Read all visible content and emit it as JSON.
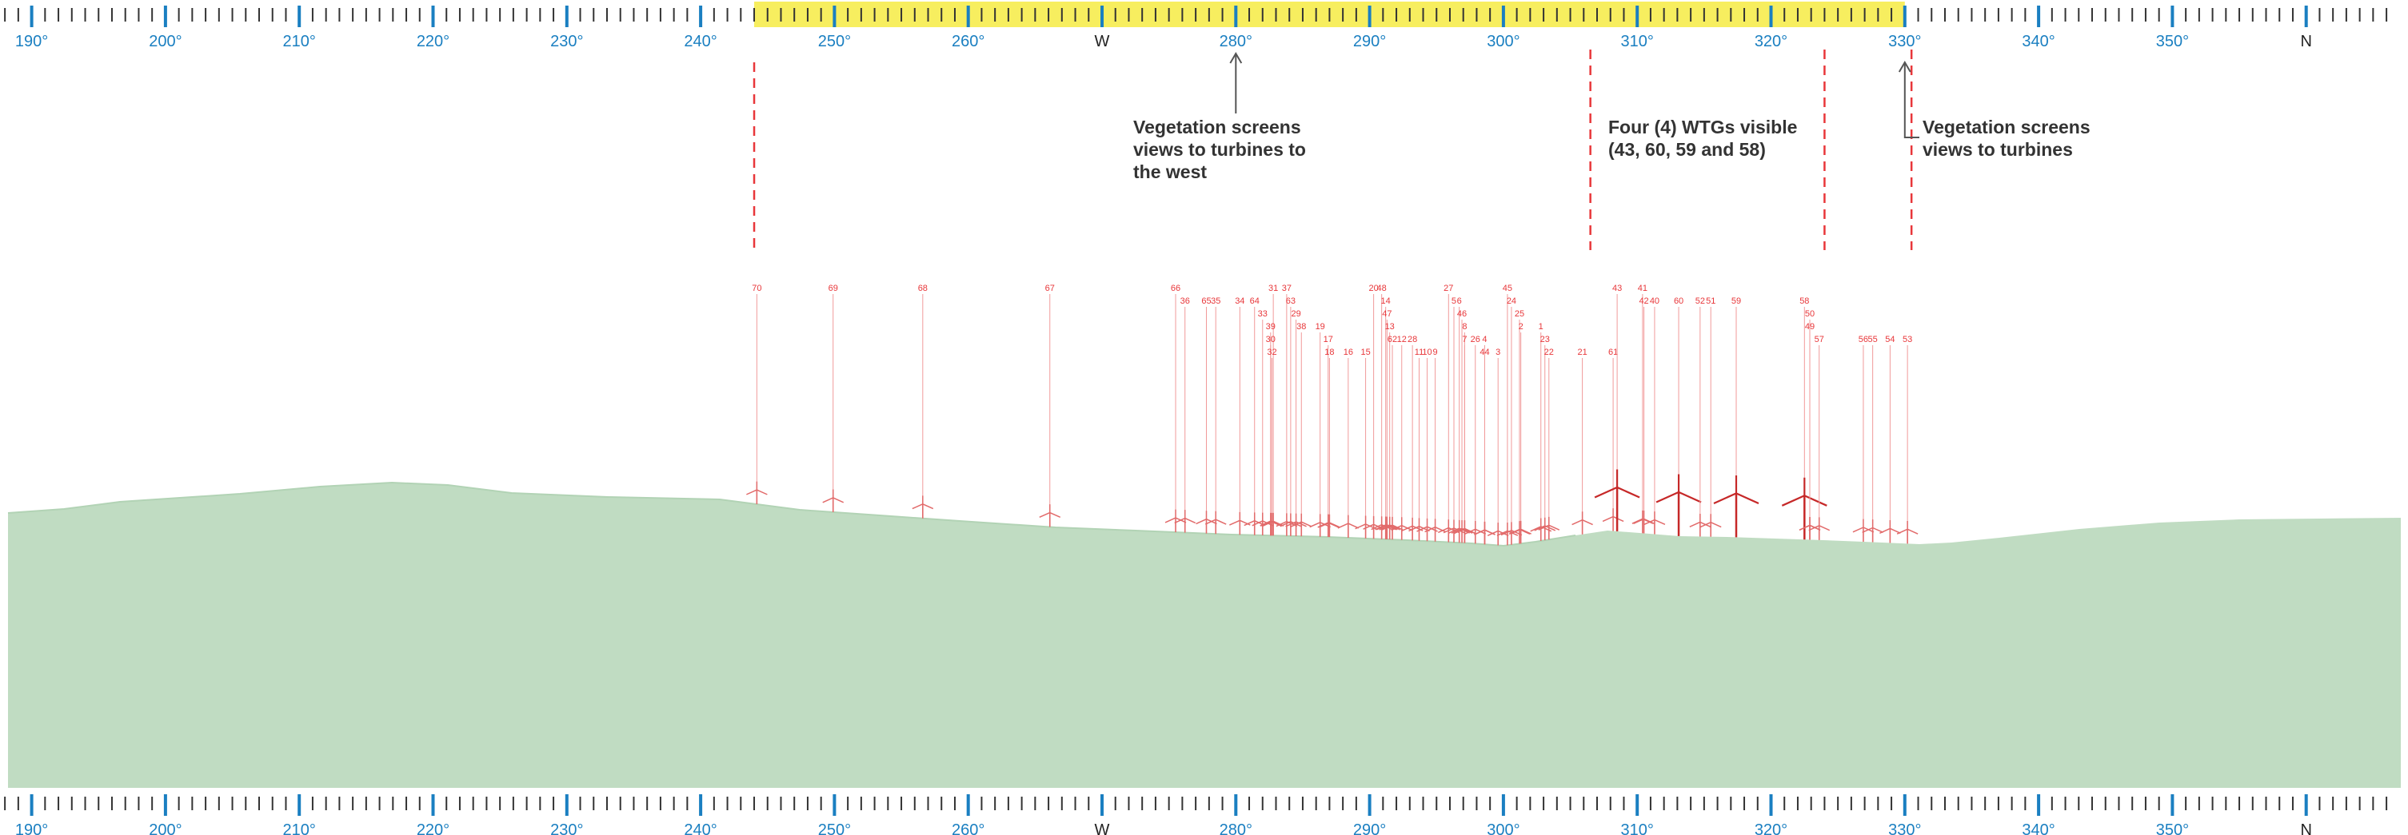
{
  "scale": {
    "start_deg": 187,
    "end_deg": 366,
    "labels": [
      {
        "deg": 190,
        "text": "190°"
      },
      {
        "deg": 200,
        "text": "200°"
      },
      {
        "deg": 210,
        "text": "210°"
      },
      {
        "deg": 220,
        "text": "220°"
      },
      {
        "deg": 230,
        "text": "230°"
      },
      {
        "deg": 240,
        "text": "240°"
      },
      {
        "deg": 250,
        "text": "250°"
      },
      {
        "deg": 260,
        "text": "260°"
      },
      {
        "deg": 270,
        "text": "W"
      },
      {
        "deg": 280,
        "text": "280°"
      },
      {
        "deg": 290,
        "text": "290°"
      },
      {
        "deg": 300,
        "text": "300°"
      },
      {
        "deg": 310,
        "text": "310°"
      },
      {
        "deg": 320,
        "text": "320°"
      },
      {
        "deg": 330,
        "text": "330°"
      },
      {
        "deg": 340,
        "text": "340°"
      },
      {
        "deg": 350,
        "text": "350°"
      },
      {
        "deg": 360,
        "text": "N"
      }
    ],
    "highlight_range": [
      244,
      330
    ],
    "highlight_color": "#f7ee5f",
    "major_tick_color": "#1a7fc1",
    "minor_tick_color": "#333333"
  },
  "annotations": [
    {
      "deg": 280,
      "lines": [
        "Vegetation screens",
        "views to turbines to",
        "the west"
      ]
    },
    {
      "deg": 310,
      "lines": [
        "Four (4) WTGs visible",
        "(43, 60, 59 and 58)"
      ]
    },
    {
      "deg": 330,
      "lines": [
        "Vegetation screens",
        "views to turbines"
      ]
    }
  ],
  "boundary_lines_deg": [
    244,
    306.5,
    324,
    330.5
  ],
  "colors": {
    "terrain": "#c0dcc2",
    "turbine_label": "#e8373a",
    "turbine_visible": "#c62828",
    "boundary": "#e8373a"
  },
  "turbines": [
    {
      "id": "70",
      "deg": 244.2,
      "row": 0,
      "visible": false
    },
    {
      "id": "69",
      "deg": 249.9,
      "row": 0,
      "visible": false
    },
    {
      "id": "68",
      "deg": 256.6,
      "row": 0,
      "visible": false
    },
    {
      "id": "67",
      "deg": 266.1,
      "row": 0,
      "visible": false
    },
    {
      "id": "66",
      "deg": 275.5,
      "row": 0,
      "visible": false
    },
    {
      "id": "36",
      "deg": 276.2,
      "row": 1,
      "visible": false
    },
    {
      "id": "65",
      "deg": 277.8,
      "row": 1,
      "visible": false
    },
    {
      "id": "35",
      "deg": 278.5,
      "row": 1,
      "visible": false
    },
    {
      "id": "34",
      "deg": 280.3,
      "row": 1,
      "visible": false
    },
    {
      "id": "64",
      "deg": 281.4,
      "row": 1,
      "visible": false
    },
    {
      "id": "33",
      "deg": 282.0,
      "row": 2,
      "visible": false
    },
    {
      "id": "31",
      "deg": 282.8,
      "row": 0,
      "visible": false
    },
    {
      "id": "39",
      "deg": 282.6,
      "row": 3,
      "visible": false
    },
    {
      "id": "30",
      "deg": 282.6,
      "row": 4,
      "visible": false
    },
    {
      "id": "32",
      "deg": 282.7,
      "row": 5,
      "visible": false
    },
    {
      "id": "37",
      "deg": 283.8,
      "row": 0,
      "visible": false
    },
    {
      "id": "63",
      "deg": 284.1,
      "row": 1,
      "visible": false
    },
    {
      "id": "29",
      "deg": 284.5,
      "row": 2,
      "visible": false
    },
    {
      "id": "38",
      "deg": 284.9,
      "row": 3,
      "visible": false
    },
    {
      "id": "19",
      "deg": 286.3,
      "row": 3,
      "visible": false
    },
    {
      "id": "17",
      "deg": 286.9,
      "row": 4,
      "visible": false
    },
    {
      "id": "18",
      "deg": 287.0,
      "row": 5,
      "visible": false
    },
    {
      "id": "16",
      "deg": 288.4,
      "row": 5,
      "visible": false
    },
    {
      "id": "15",
      "deg": 289.7,
      "row": 5,
      "visible": false
    },
    {
      "id": "20",
      "deg": 290.3,
      "row": 0,
      "visible": false
    },
    {
      "id": "48",
      "deg": 290.9,
      "row": 0,
      "visible": false
    },
    {
      "id": "14",
      "deg": 291.2,
      "row": 1,
      "visible": false
    },
    {
      "id": "47",
      "deg": 291.3,
      "row": 2,
      "visible": false
    },
    {
      "id": "13",
      "deg": 291.5,
      "row": 3,
      "visible": false
    },
    {
      "id": "62",
      "deg": 291.7,
      "row": 4,
      "visible": false
    },
    {
      "id": "12",
      "deg": 292.4,
      "row": 4,
      "visible": false
    },
    {
      "id": "28",
      "deg": 293.2,
      "row": 4,
      "visible": false
    },
    {
      "id": "11",
      "deg": 293.7,
      "row": 5,
      "visible": false
    },
    {
      "id": "10",
      "deg": 294.3,
      "row": 5,
      "visible": false
    },
    {
      "id": "9",
      "deg": 294.9,
      "row": 5,
      "visible": false
    },
    {
      "id": "27",
      "deg": 295.9,
      "row": 0,
      "visible": false
    },
    {
      "id": "5",
      "deg": 296.3,
      "row": 1,
      "visible": false
    },
    {
      "id": "6",
      "deg": 296.7,
      "row": 1,
      "visible": false
    },
    {
      "id": "46",
      "deg": 296.9,
      "row": 2,
      "visible": false
    },
    {
      "id": "8",
      "deg": 297.1,
      "row": 3,
      "visible": false
    },
    {
      "id": "7",
      "deg": 297.1,
      "row": 4,
      "visible": false
    },
    {
      "id": "26",
      "deg": 297.9,
      "row": 4,
      "visible": false
    },
    {
      "id": "4",
      "deg": 298.6,
      "row": 4,
      "visible": false
    },
    {
      "id": "44",
      "deg": 298.6,
      "row": 5,
      "visible": false
    },
    {
      "id": "3",
      "deg": 299.6,
      "row": 5,
      "visible": false
    },
    {
      "id": "45",
      "deg": 300.3,
      "row": 0,
      "visible": false
    },
    {
      "id": "24",
      "deg": 300.6,
      "row": 1,
      "visible": false
    },
    {
      "id": "25",
      "deg": 301.2,
      "row": 2,
      "visible": false
    },
    {
      "id": "2",
      "deg": 301.3,
      "row": 3,
      "visible": false
    },
    {
      "id": "1",
      "deg": 302.8,
      "row": 3,
      "visible": false
    },
    {
      "id": "23",
      "deg": 303.1,
      "row": 4,
      "visible": false
    },
    {
      "id": "22",
      "deg": 303.4,
      "row": 5,
      "visible": false
    },
    {
      "id": "21",
      "deg": 305.9,
      "row": 5,
      "visible": false
    },
    {
      "id": "61",
      "deg": 308.2,
      "row": 5,
      "visible": false
    },
    {
      "id": "43",
      "deg": 308.5,
      "row": 0,
      "visible": true
    },
    {
      "id": "41",
      "deg": 310.4,
      "row": 0,
      "visible": false
    },
    {
      "id": "42",
      "deg": 310.5,
      "row": 1,
      "visible": false
    },
    {
      "id": "40",
      "deg": 311.3,
      "row": 1,
      "visible": false
    },
    {
      "id": "60",
      "deg": 313.1,
      "row": 1,
      "visible": true
    },
    {
      "id": "52",
      "deg": 314.7,
      "row": 1,
      "visible": false
    },
    {
      "id": "51",
      "deg": 315.5,
      "row": 1,
      "visible": false
    },
    {
      "id": "59",
      "deg": 317.4,
      "row": 1,
      "visible": true
    },
    {
      "id": "58",
      "deg": 322.5,
      "row": 1,
      "visible": true
    },
    {
      "id": "50",
      "deg": 322.9,
      "row": 2,
      "visible": false
    },
    {
      "id": "49",
      "deg": 322.9,
      "row": 3,
      "visible": false
    },
    {
      "id": "57",
      "deg": 323.6,
      "row": 4,
      "visible": false
    },
    {
      "id": "56",
      "deg": 326.9,
      "row": 4,
      "visible": false
    },
    {
      "id": "55",
      "deg": 327.6,
      "row": 4,
      "visible": false
    },
    {
      "id": "54",
      "deg": 328.9,
      "row": 4,
      "visible": false
    },
    {
      "id": "53",
      "deg": 330.2,
      "row": 4,
      "visible": false
    }
  ]
}
